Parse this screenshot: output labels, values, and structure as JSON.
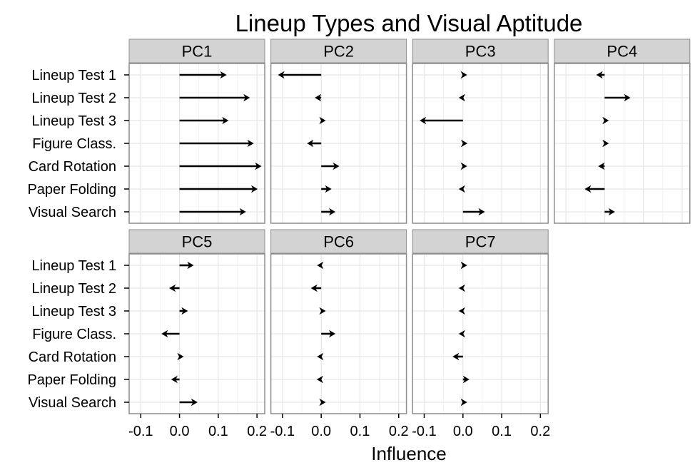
{
  "chart_data": {
    "type": "arrow-facet",
    "title": "Lineup Types and Visual Aptitude",
    "xlabel": "Influence",
    "ylabel": "",
    "xlim": [
      -0.13,
      0.22
    ],
    "xticks": [
      -0.1,
      0.0,
      0.1,
      0.2
    ],
    "xtick_labels": [
      "-0.1",
      "0.0",
      "0.1",
      "0.2"
    ],
    "grid": true,
    "categories": [
      "Lineup Test 1",
      "Lineup Test 2",
      "Lineup Test 3",
      "Figure Class.",
      "Card Rotation",
      "Paper Folding",
      "Visual Search"
    ],
    "panels": [
      {
        "name": "PC1",
        "values": [
          0.12,
          0.18,
          0.125,
          0.19,
          0.21,
          0.2,
          0.17
        ]
      },
      {
        "name": "PC2",
        "values": [
          -0.11,
          -0.015,
          0.01,
          -0.035,
          0.045,
          0.025,
          0.035
        ]
      },
      {
        "name": "PC3",
        "values": [
          0.005,
          -0.005,
          -0.11,
          0.01,
          0.005,
          -0.005,
          0.055
        ]
      },
      {
        "name": "PC4",
        "values": [
          -0.02,
          0.065,
          0.005,
          0.0,
          -0.015,
          -0.05,
          0.025
        ]
      },
      {
        "name": "PC5",
        "values": [
          0.035,
          -0.025,
          0.02,
          -0.045,
          0.005,
          -0.02,
          0.045
        ]
      },
      {
        "name": "PC6",
        "values": [
          -0.005,
          -0.025,
          0.01,
          0.035,
          -0.005,
          -0.01,
          0.01
        ]
      },
      {
        "name": "PC7",
        "values": [
          0.0,
          -0.005,
          -0.005,
          -0.005,
          -0.025,
          0.015,
          0.005
        ]
      }
    ]
  }
}
